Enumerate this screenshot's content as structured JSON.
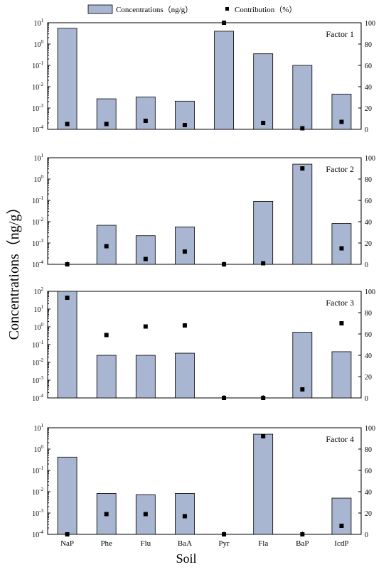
{
  "legend": {
    "bar_label": "Concentrations（ng/g）",
    "marker_label": "Contribution（%）"
  },
  "y_label": "Concentrations（ng/g）",
  "x_label": "Soil",
  "colors": {
    "bar": "#a9b6d1",
    "marker": "#000000"
  },
  "chart_data": [
    {
      "type": "bar",
      "title": "Factor 1",
      "categories": [
        "NaP",
        "Phe",
        "Flu",
        "BaA",
        "Pyr",
        "Fla",
        "BaP",
        "IcdP"
      ],
      "y_scale": "log",
      "ylim": [
        0.0001,
        10
      ],
      "y_ticks": [
        {
          "exp": "-4"
        },
        {
          "exp": "-3"
        },
        {
          "exp": "-2"
        },
        {
          "exp": "-1"
        },
        {
          "exp": "0"
        },
        {
          "exp": "1"
        }
      ],
      "y2lim": [
        0,
        100
      ],
      "y2_ticks": [
        "0",
        "20",
        "40",
        "60",
        "80",
        "100"
      ],
      "series": [
        {
          "name": "Concentrations（ng/g）",
          "kind": "bar",
          "values": [
            5.5,
            0.0027,
            0.0033,
            0.0021,
            4.0,
            0.35,
            0.1,
            0.0045
          ]
        },
        {
          "name": "Contribution（%）",
          "kind": "scatter",
          "values": [
            5,
            5,
            8,
            4,
            100,
            6,
            1,
            7
          ]
        }
      ]
    },
    {
      "type": "bar",
      "title": "Factor  2",
      "categories": [
        "NaP",
        "Phe",
        "Flu",
        "BaA",
        "Pyr",
        "Fla",
        "BaP",
        "IcdP"
      ],
      "y_scale": "log",
      "ylim": [
        0.0001,
        10
      ],
      "y_ticks": [
        {
          "exp": "-4"
        },
        {
          "exp": "-3"
        },
        {
          "exp": "-2"
        },
        {
          "exp": "-1"
        },
        {
          "exp": "0"
        },
        {
          "exp": "1"
        }
      ],
      "y2lim": [
        0,
        100
      ],
      "y2_ticks": [
        "0",
        "20",
        "40",
        "60",
        "80",
        "100"
      ],
      "series": [
        {
          "name": "Concentrations（ng/g）",
          "kind": "bar",
          "values": [
            null,
            0.0068,
            0.0022,
            0.0057,
            null,
            0.09,
            5.0,
            0.0082
          ]
        },
        {
          "name": "Contribution（%）",
          "kind": "scatter",
          "values": [
            0,
            17,
            5,
            12,
            0,
            1,
            90,
            15
          ]
        }
      ]
    },
    {
      "type": "bar",
      "title": "Factor 3",
      "categories": [
        "NaP",
        "Phe",
        "Flu",
        "BaA",
        "Pyr",
        "Fla",
        "BaP",
        "IcdP"
      ],
      "y_scale": "log",
      "ylim": [
        0.0001,
        100
      ],
      "y_ticks": [
        {
          "exp": "-4"
        },
        {
          "exp": "-3"
        },
        {
          "exp": "-2"
        },
        {
          "exp": "-1"
        },
        {
          "exp": "0"
        },
        {
          "exp": "1"
        },
        {
          "exp": "2"
        }
      ],
      "y2lim": [
        0,
        100
      ],
      "y2_ticks": [
        "0",
        "20",
        "40",
        "60",
        "80",
        "100"
      ],
      "series": [
        {
          "name": "Concentrations（ng/g）",
          "kind": "bar",
          "values": [
            100,
            0.025,
            0.025,
            0.033,
            null,
            null,
            0.5,
            0.04
          ]
        },
        {
          "name": "Contribution（%）",
          "kind": "scatter",
          "values": [
            94,
            59,
            67,
            68,
            0,
            0,
            8,
            70
          ]
        }
      ]
    },
    {
      "type": "bar",
      "title": "Factor  4",
      "categories": [
        "NaP",
        "Phe",
        "Flu",
        "BaA",
        "Pyr",
        "Fla",
        "BaP",
        "IcdP"
      ],
      "y_scale": "log",
      "ylim": [
        0.0001,
        10
      ],
      "y_ticks": [
        {
          "exp": "-4"
        },
        {
          "exp": "-3"
        },
        {
          "exp": "-2"
        },
        {
          "exp": "-1"
        },
        {
          "exp": "0"
        },
        {
          "exp": "1"
        }
      ],
      "y2lim": [
        0,
        100
      ],
      "y2_ticks": [
        "0",
        "20",
        "40",
        "60",
        "80",
        "100"
      ],
      "series": [
        {
          "name": "Concentrations（ng/g）",
          "kind": "bar",
          "values": [
            0.42,
            0.0083,
            0.0073,
            0.0083,
            null,
            5.0,
            null,
            0.005
          ]
        },
        {
          "name": "Contribution（%）",
          "kind": "scatter",
          "values": [
            0,
            19,
            19,
            17,
            0,
            92,
            0,
            8
          ]
        }
      ]
    }
  ]
}
